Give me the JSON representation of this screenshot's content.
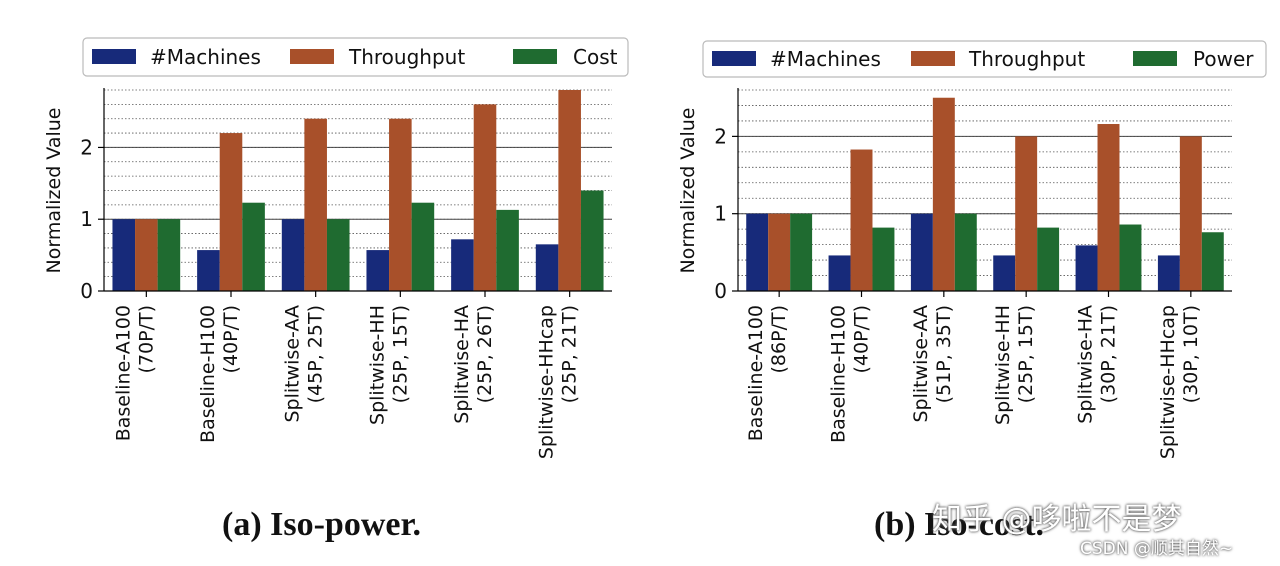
{
  "chart_data": [
    {
      "id": "a",
      "type": "bar",
      "caption": "(a) Iso-power.",
      "ylabel": "Normalized Value",
      "ylim": [
        0,
        2.8
      ],
      "yticks": [
        0,
        1,
        2
      ],
      "minor_step": 0.2,
      "legend_position": "top",
      "categories": [
        "Baseline-A100\n(70P/T)",
        "Baseline-H100\n(40P/T)",
        "Splitwise-AA\n(45P, 25T)",
        "Splitwise-HH\n(25P, 15T)",
        "Splitwise-HA\n(25P, 26T)",
        "Splitwise-HHcap\n(25P, 21T)"
      ],
      "series": [
        {
          "name": "#Machines",
          "color": "#172a7a",
          "values": [
            1.0,
            0.57,
            1.0,
            0.57,
            0.72,
            0.65
          ]
        },
        {
          "name": "Throughput",
          "color": "#a8502a",
          "values": [
            1.0,
            2.2,
            2.4,
            2.4,
            2.6,
            2.8
          ]
        },
        {
          "name": "Cost",
          "color": "#1f6b30",
          "values": [
            1.0,
            1.23,
            1.0,
            1.23,
            1.13,
            1.4
          ]
        }
      ]
    },
    {
      "id": "b",
      "type": "bar",
      "caption": "(b) Iso-cost.",
      "ylabel": "Normalized Value",
      "ylim": [
        0,
        2.6
      ],
      "yticks": [
        0,
        1,
        2
      ],
      "minor_step": 0.2,
      "legend_position": "top",
      "categories": [
        "Baseline-A100\n(86P/T)",
        "Baseline-H100\n(40P/T)",
        "Splitwise-AA\n(51P, 35T)",
        "Splitwise-HH\n(25P, 15T)",
        "Splitwise-HA\n(30P, 21T)",
        "Splitwise-HHcap\n(30P, 10T)"
      ],
      "series": [
        {
          "name": "#Machines",
          "color": "#172a7a",
          "values": [
            1.0,
            0.46,
            1.0,
            0.46,
            0.59,
            0.46
          ]
        },
        {
          "name": "Throughput",
          "color": "#a8502a",
          "values": [
            1.0,
            1.83,
            2.5,
            2.0,
            2.16,
            2.0
          ]
        },
        {
          "name": "Power",
          "color": "#1f6b30",
          "values": [
            1.0,
            0.82,
            1.0,
            0.82,
            0.86,
            0.76
          ]
        }
      ]
    }
  ],
  "watermark": {
    "zhihu": "知乎 @哆啦不是梦",
    "csdn": "CSDN @顺其自然~"
  }
}
